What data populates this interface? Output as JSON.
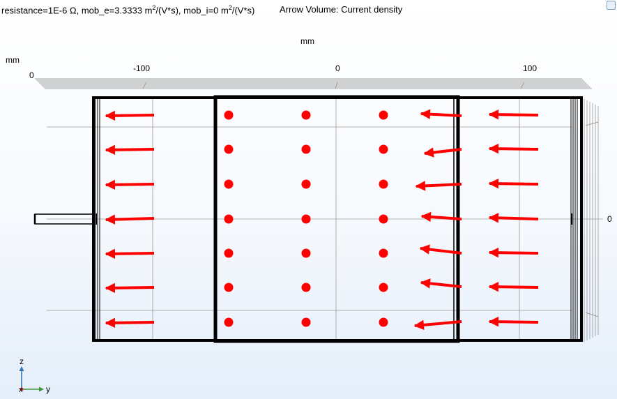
{
  "header": {
    "params_prefix": "resistance=1E-6 Ω, mob_e=3.3333 m",
    "exp1": "2",
    "params_mid": "/(V*s), mob_i=0 m",
    "exp2": "2",
    "params_suffix": "/(V*s)",
    "plot_title": "Arrow Volume: Current density"
  },
  "axes": {
    "top_unit": "mm",
    "left_unit": "mm",
    "top_ticks": [
      "-100",
      "0",
      "100"
    ],
    "left_tick": "0",
    "right_tick": "0"
  },
  "triad": {
    "z": "z",
    "x": "x",
    "y": "y"
  },
  "colors": {
    "arrow": "#ff0000",
    "frame": "#000000",
    "grid": "#9a9a9a"
  },
  "corner_icon": "view-toggle-icon"
}
